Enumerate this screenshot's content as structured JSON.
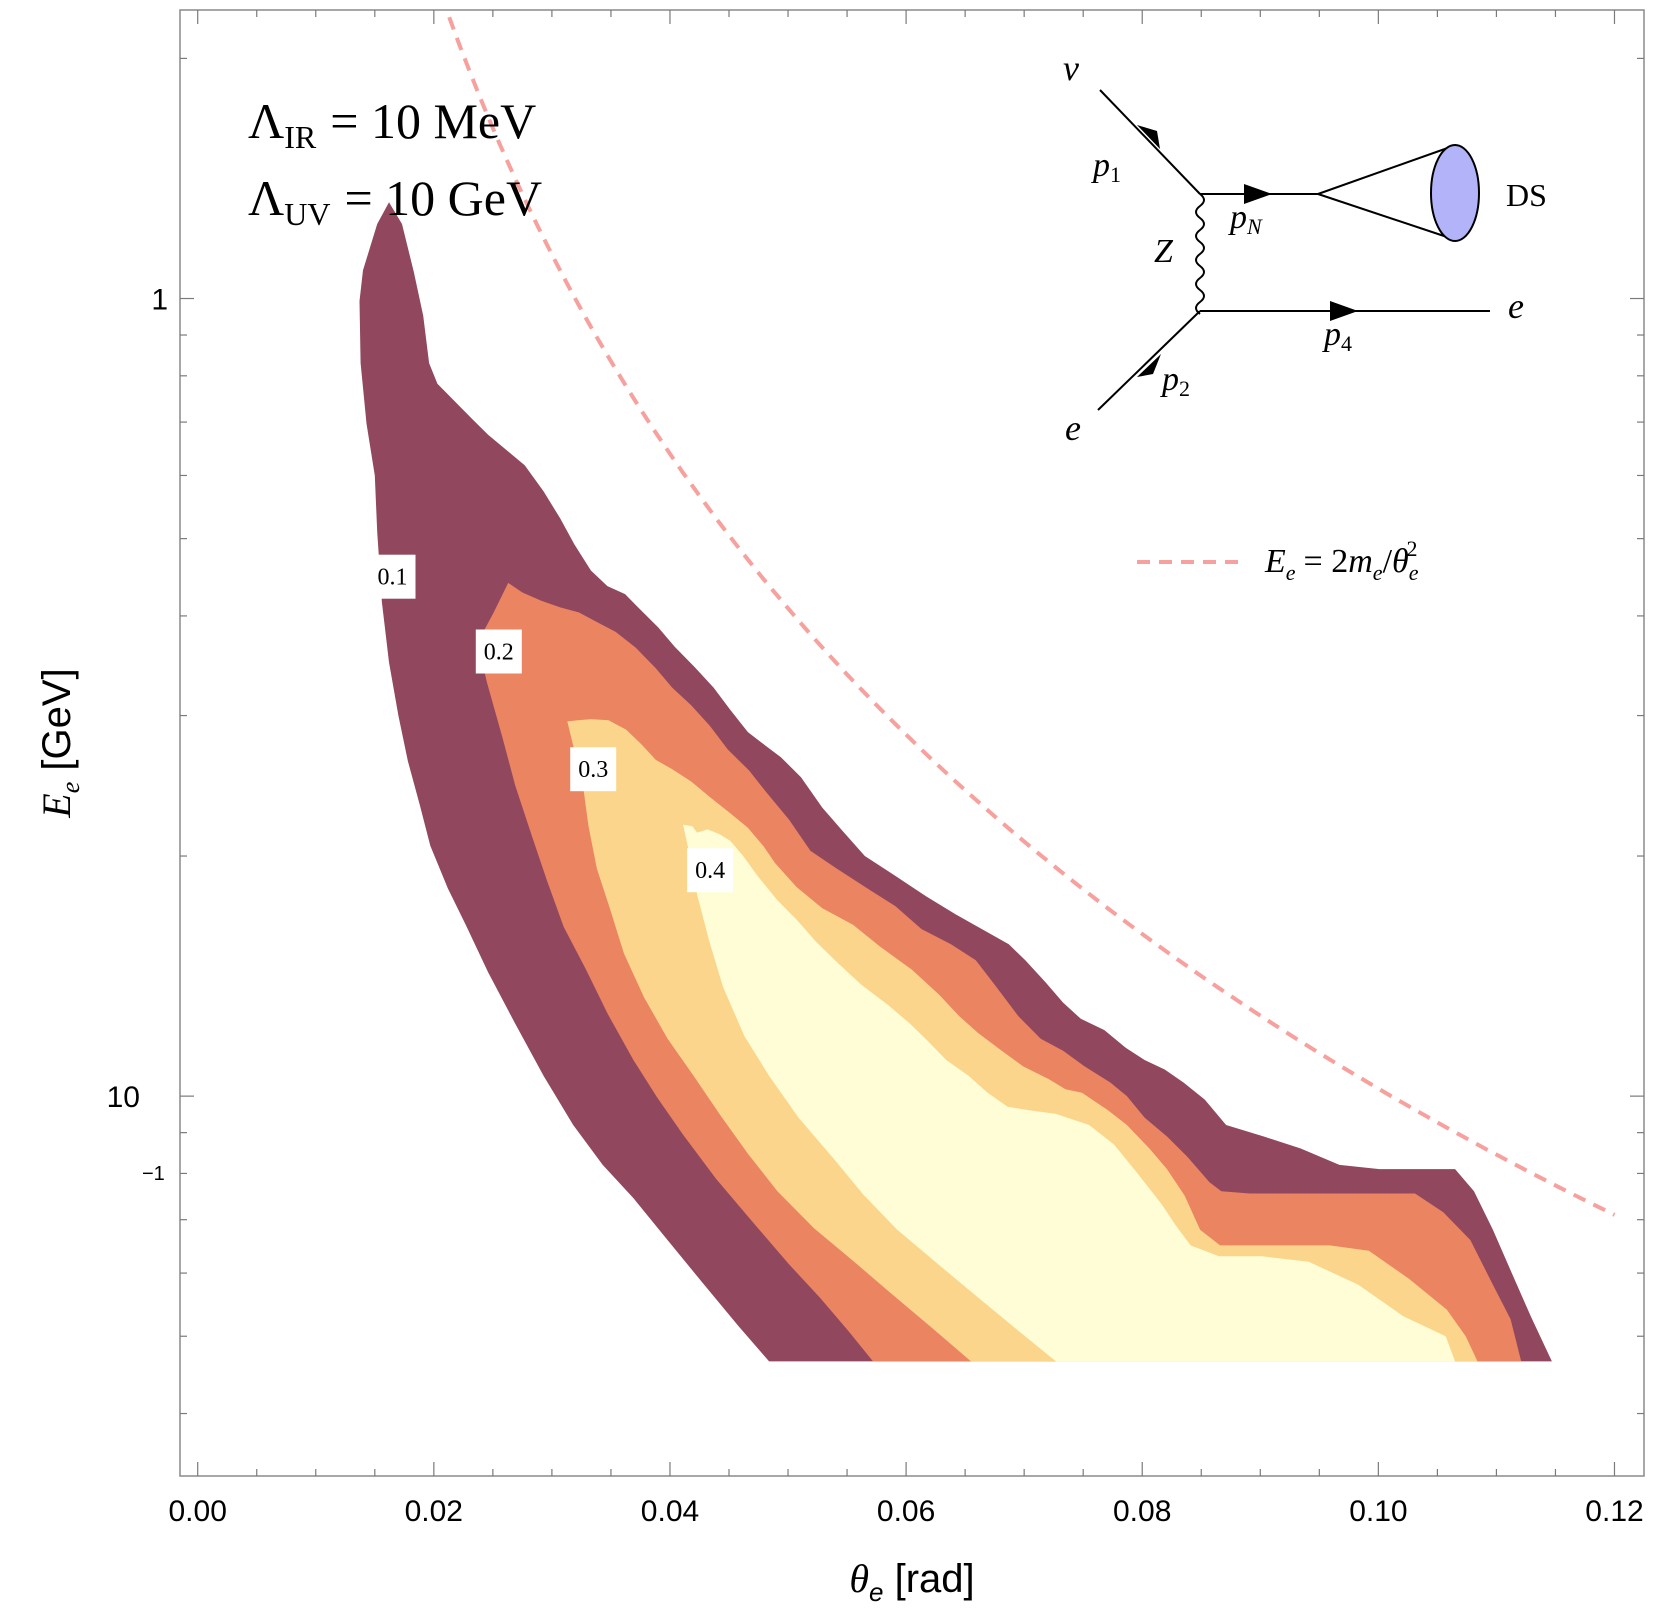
{
  "chart_data": {
    "type": "contour",
    "title": "",
    "xlabel": "θe [rad]",
    "xlabel_symbol": "θ",
    "xlabel_sub": "e",
    "xlabel_unit": "[rad]",
    "ylabel": "Ee [GeV]",
    "ylabel_symbol": "E",
    "ylabel_sub": "e",
    "ylabel_unit": "[GeV]",
    "xlim": [
      -0.0015,
      0.1225
    ],
    "ylim": [
      0.0334,
      2.3
    ],
    "yscale": "log",
    "xticks": [
      0.0,
      0.02,
      0.04,
      0.06,
      0.08,
      0.1,
      0.12
    ],
    "xtick_labels": [
      "0.00",
      "0.02",
      "0.04",
      "0.06",
      "0.08",
      "0.10",
      "0.12"
    ],
    "ytick_labels": [
      {
        "value": 1,
        "base": "1",
        "exp": ""
      },
      {
        "value": 0.1,
        "base": "10",
        "exp": "−1"
      }
    ],
    "annotations": {
      "lambda_ir": {
        "symbol": "Λ",
        "sub": "IR",
        "rest": "= 10 MeV"
      },
      "lambda_uv": {
        "symbol": "Λ",
        "sub": "UV",
        "rest": "= 10 GeV"
      }
    },
    "legend": {
      "placement": "right",
      "label_E": "E",
      "label_sub_e": "e",
      "label_rest": "= 2",
      "label_m": "m",
      "label_slash": "/",
      "label_theta": "θ",
      "label_sup": "2",
      "color": "#f7a19e"
    },
    "reference_curve": {
      "name": "Ee = 2me/θe²",
      "formula_coeff_GeV": 0.001022,
      "theta_range": [
        0.0213,
        0.12
      ],
      "color": "#f7a19e",
      "style": "dashed"
    },
    "contour_levels": [
      {
        "level": 0.1,
        "label": "0.1",
        "color": "#91485f",
        "label_pos": [
          0.0165,
          0.448
        ],
        "polygon": [
          [
            0.0137,
            0.993
          ],
          [
            0.014,
            1.085
          ],
          [
            0.0152,
            1.24
          ],
          [
            0.0162,
            1.32
          ],
          [
            0.0173,
            1.24
          ],
          [
            0.0183,
            1.08
          ],
          [
            0.0191,
            0.952
          ],
          [
            0.0196,
            0.83
          ],
          [
            0.0203,
            0.782
          ],
          [
            0.0233,
            0.705
          ],
          [
            0.0246,
            0.675
          ],
          [
            0.0263,
            0.643
          ],
          [
            0.0277,
            0.618
          ],
          [
            0.0293,
            0.573
          ],
          [
            0.0307,
            0.53
          ],
          [
            0.0319,
            0.492
          ],
          [
            0.0333,
            0.456
          ],
          [
            0.0347,
            0.436
          ],
          [
            0.0362,
            0.426
          ],
          [
            0.0373,
            0.41
          ],
          [
            0.039,
            0.387
          ],
          [
            0.0404,
            0.366
          ],
          [
            0.0421,
            0.345
          ],
          [
            0.0437,
            0.325
          ],
          [
            0.0451,
            0.305
          ],
          [
            0.0466,
            0.286
          ],
          [
            0.0481,
            0.275
          ],
          [
            0.0494,
            0.266
          ],
          [
            0.0511,
            0.251
          ],
          [
            0.0529,
            0.23
          ],
          [
            0.0545,
            0.216
          ],
          [
            0.0565,
            0.2
          ],
          [
            0.0593,
            0.188
          ],
          [
            0.0617,
            0.178
          ],
          [
            0.0642,
            0.169
          ],
          [
            0.0664,
            0.162
          ],
          [
            0.0687,
            0.155
          ],
          [
            0.0701,
            0.148
          ],
          [
            0.0718,
            0.139
          ],
          [
            0.0733,
            0.131
          ],
          [
            0.0748,
            0.125
          ],
          [
            0.0768,
            0.121
          ],
          [
            0.0786,
            0.115
          ],
          [
            0.0802,
            0.111
          ],
          [
            0.0819,
            0.108
          ],
          [
            0.0835,
            0.104
          ],
          [
            0.0853,
            0.099
          ],
          [
            0.0871,
            0.092
          ],
          [
            0.0903,
            0.089
          ],
          [
            0.0934,
            0.086
          ],
          [
            0.0967,
            0.082
          ],
          [
            0.1001,
            0.081
          ],
          [
            0.1044,
            0.081
          ],
          [
            0.1065,
            0.081
          ],
          [
            0.1081,
            0.076
          ],
          [
            0.1097,
            0.068
          ],
          [
            0.1113,
            0.06
          ],
          [
            0.1129,
            0.053
          ],
          [
            0.1147,
            0.0465
          ],
          [
            0.0484,
            0.0465
          ],
          [
            0.0458,
            0.0515
          ],
          [
            0.0427,
            0.0585
          ],
          [
            0.0398,
            0.066
          ],
          [
            0.0369,
            0.0745
          ],
          [
            0.0343,
            0.082
          ],
          [
            0.0318,
            0.092
          ],
          [
            0.0293,
            0.106
          ],
          [
            0.0268,
            0.124
          ],
          [
            0.0246,
            0.143
          ],
          [
            0.0227,
            0.164
          ],
          [
            0.0212,
            0.182
          ],
          [
            0.0197,
            0.206
          ],
          [
            0.0188,
            0.232
          ],
          [
            0.0178,
            0.263
          ],
          [
            0.017,
            0.3
          ],
          [
            0.0162,
            0.35
          ],
          [
            0.0156,
            0.416
          ],
          [
            0.0152,
            0.51
          ],
          [
            0.015,
            0.6
          ],
          [
            0.0143,
            0.697
          ],
          [
            0.0138,
            0.83
          ]
        ]
      },
      {
        "level": 0.2,
        "label": "0.2",
        "color": "#ea8461",
        "label_pos": [
          0.0255,
          0.361
        ],
        "polygon": [
          [
            0.0237,
            0.37
          ],
          [
            0.0251,
            0.405
          ],
          [
            0.0263,
            0.44
          ],
          [
            0.0275,
            0.428
          ],
          [
            0.0291,
            0.418
          ],
          [
            0.0307,
            0.41
          ],
          [
            0.0323,
            0.404
          ],
          [
            0.0338,
            0.393
          ],
          [
            0.0354,
            0.382
          ],
          [
            0.0371,
            0.365
          ],
          [
            0.0388,
            0.344
          ],
          [
            0.0402,
            0.325
          ],
          [
            0.0418,
            0.309
          ],
          [
            0.0434,
            0.291
          ],
          [
            0.0449,
            0.272
          ],
          [
            0.0467,
            0.256
          ],
          [
            0.0481,
            0.241
          ],
          [
            0.0501,
            0.222
          ],
          [
            0.0519,
            0.203
          ],
          [
            0.0541,
            0.193
          ],
          [
            0.0565,
            0.183
          ],
          [
            0.0591,
            0.173
          ],
          [
            0.0613,
            0.162
          ],
          [
            0.0638,
            0.155
          ],
          [
            0.0659,
            0.148
          ],
          [
            0.0675,
            0.138
          ],
          [
            0.0695,
            0.126
          ],
          [
            0.0714,
            0.118
          ],
          [
            0.0733,
            0.114
          ],
          [
            0.0751,
            0.109
          ],
          [
            0.0773,
            0.104
          ],
          [
            0.0787,
            0.1
          ],
          [
            0.0802,
            0.094
          ],
          [
            0.0821,
            0.089
          ],
          [
            0.0838,
            0.084
          ],
          [
            0.0857,
            0.078
          ],
          [
            0.0867,
            0.076
          ],
          [
            0.0891,
            0.0755
          ],
          [
            0.0931,
            0.0755
          ],
          [
            0.1031,
            0.0755
          ],
          [
            0.1055,
            0.0715
          ],
          [
            0.1078,
            0.066
          ],
          [
            0.1097,
            0.058
          ],
          [
            0.1112,
            0.0525
          ],
          [
            0.1121,
            0.0465
          ],
          [
            0.0572,
            0.0465
          ],
          [
            0.0551,
            0.0508
          ],
          [
            0.0527,
            0.0559
          ],
          [
            0.0501,
            0.0615
          ],
          [
            0.0472,
            0.069
          ],
          [
            0.0439,
            0.0788
          ],
          [
            0.0411,
            0.0895
          ],
          [
            0.0389,
            0.0997
          ],
          [
            0.0369,
            0.111
          ],
          [
            0.0347,
            0.127
          ],
          [
            0.0329,
            0.144
          ],
          [
            0.031,
            0.163
          ],
          [
            0.0296,
            0.186
          ],
          [
            0.0283,
            0.212
          ],
          [
            0.0269,
            0.245
          ],
          [
            0.0258,
            0.282
          ],
          [
            0.0245,
            0.33
          ]
        ]
      },
      {
        "level": 0.3,
        "label": "0.3",
        "color": "#fcd58c",
        "label_pos": [
          0.0335,
          0.257
        ],
        "polygon": [
          [
            0.0313,
            0.295
          ],
          [
            0.0322,
            0.296
          ],
          [
            0.0333,
            0.297
          ],
          [
            0.0348,
            0.296
          ],
          [
            0.0363,
            0.288
          ],
          [
            0.0376,
            0.276
          ],
          [
            0.0388,
            0.264
          ],
          [
            0.0402,
            0.257
          ],
          [
            0.0418,
            0.248
          ],
          [
            0.0434,
            0.237
          ],
          [
            0.045,
            0.227
          ],
          [
            0.0466,
            0.217
          ],
          [
            0.0479,
            0.206
          ],
          [
            0.0489,
            0.196
          ],
          [
            0.0507,
            0.183
          ],
          [
            0.0529,
            0.172
          ],
          [
            0.0555,
            0.164
          ],
          [
            0.0578,
            0.154
          ],
          [
            0.0605,
            0.144
          ],
          [
            0.0628,
            0.134
          ],
          [
            0.0645,
            0.126
          ],
          [
            0.0661,
            0.12
          ],
          [
            0.0681,
            0.114
          ],
          [
            0.0699,
            0.109
          ],
          [
            0.0721,
            0.105
          ],
          [
            0.0735,
            0.102
          ],
          [
            0.0749,
            0.101
          ],
          [
            0.0771,
            0.096
          ],
          [
            0.0787,
            0.092
          ],
          [
            0.0806,
            0.086
          ],
          [
            0.0821,
            0.081
          ],
          [
            0.0836,
            0.075
          ],
          [
            0.0849,
            0.068
          ],
          [
            0.0866,
            0.065
          ],
          [
            0.0907,
            0.065
          ],
          [
            0.0959,
            0.065
          ],
          [
            0.0992,
            0.064
          ],
          [
            0.1026,
            0.059
          ],
          [
            0.1058,
            0.054
          ],
          [
            0.1074,
            0.05
          ],
          [
            0.1084,
            0.0465
          ],
          [
            0.0655,
            0.0465
          ],
          [
            0.0622,
            0.0512
          ],
          [
            0.0589,
            0.0563
          ],
          [
            0.0557,
            0.0618
          ],
          [
            0.0522,
            0.0683
          ],
          [
            0.0491,
            0.076
          ],
          [
            0.0466,
            0.0847
          ],
          [
            0.0443,
            0.0945
          ],
          [
            0.042,
            0.106
          ],
          [
            0.0398,
            0.118
          ],
          [
            0.0378,
            0.133
          ],
          [
            0.0361,
            0.151
          ],
          [
            0.0349,
            0.172
          ],
          [
            0.0338,
            0.193
          ],
          [
            0.0331,
            0.218
          ],
          [
            0.0326,
            0.247
          ],
          [
            0.0318,
            0.275
          ]
        ]
      },
      {
        "level": 0.4,
        "label": "0.4",
        "color": "#fffdd5",
        "label_pos": [
          0.0434,
          0.192
        ],
        "polygon": [
          [
            0.0411,
            0.219
          ],
          [
            0.0419,
            0.218
          ],
          [
            0.0423,
            0.214
          ],
          [
            0.0432,
            0.216
          ],
          [
            0.0442,
            0.213
          ],
          [
            0.0451,
            0.209
          ],
          [
            0.0462,
            0.2
          ],
          [
            0.0474,
            0.189
          ],
          [
            0.0491,
            0.176
          ],
          [
            0.0508,
            0.166
          ],
          [
            0.0524,
            0.156
          ],
          [
            0.0542,
            0.147
          ],
          [
            0.0562,
            0.138
          ],
          [
            0.0585,
            0.13
          ],
          [
            0.0604,
            0.123
          ],
          [
            0.0619,
            0.117
          ],
          [
            0.0634,
            0.111
          ],
          [
            0.0653,
            0.106
          ],
          [
            0.0669,
            0.101
          ],
          [
            0.0686,
            0.097
          ],
          [
            0.0704,
            0.096
          ],
          [
            0.0727,
            0.095
          ],
          [
            0.0755,
            0.092
          ],
          [
            0.0776,
            0.087
          ],
          [
            0.0796,
            0.08
          ],
          [
            0.0817,
            0.073
          ],
          [
            0.0828,
            0.069
          ],
          [
            0.0841,
            0.065
          ],
          [
            0.0865,
            0.063
          ],
          [
            0.0901,
            0.063
          ],
          [
            0.0941,
            0.062
          ],
          [
            0.0983,
            0.058
          ],
          [
            0.1021,
            0.053
          ],
          [
            0.1057,
            0.05
          ],
          [
            0.1065,
            0.0465
          ],
          [
            0.0727,
            0.0465
          ],
          [
            0.0695,
            0.0508
          ],
          [
            0.0663,
            0.0556
          ],
          [
            0.0628,
            0.0614
          ],
          [
            0.0592,
            0.0681
          ],
          [
            0.0564,
            0.0752
          ],
          [
            0.0538,
            0.0837
          ],
          [
            0.0509,
            0.0939
          ],
          [
            0.0484,
            0.106
          ],
          [
            0.0463,
            0.119
          ],
          [
            0.0445,
            0.137
          ],
          [
            0.0433,
            0.157
          ],
          [
            0.0423,
            0.179
          ],
          [
            0.0417,
            0.2
          ]
        ]
      }
    ],
    "inset_diagram": {
      "nu": "ν",
      "p1": "p",
      "p1_sub": "1",
      "pN": "p",
      "pN_sub": "N",
      "Z": "Z",
      "DS": "DS",
      "e_out": "e",
      "p4": "p",
      "p4_sub": "4",
      "p2": "p",
      "p2_sub": "2",
      "e_in": "e",
      "blob_color": "#b3b3fa"
    }
  }
}
